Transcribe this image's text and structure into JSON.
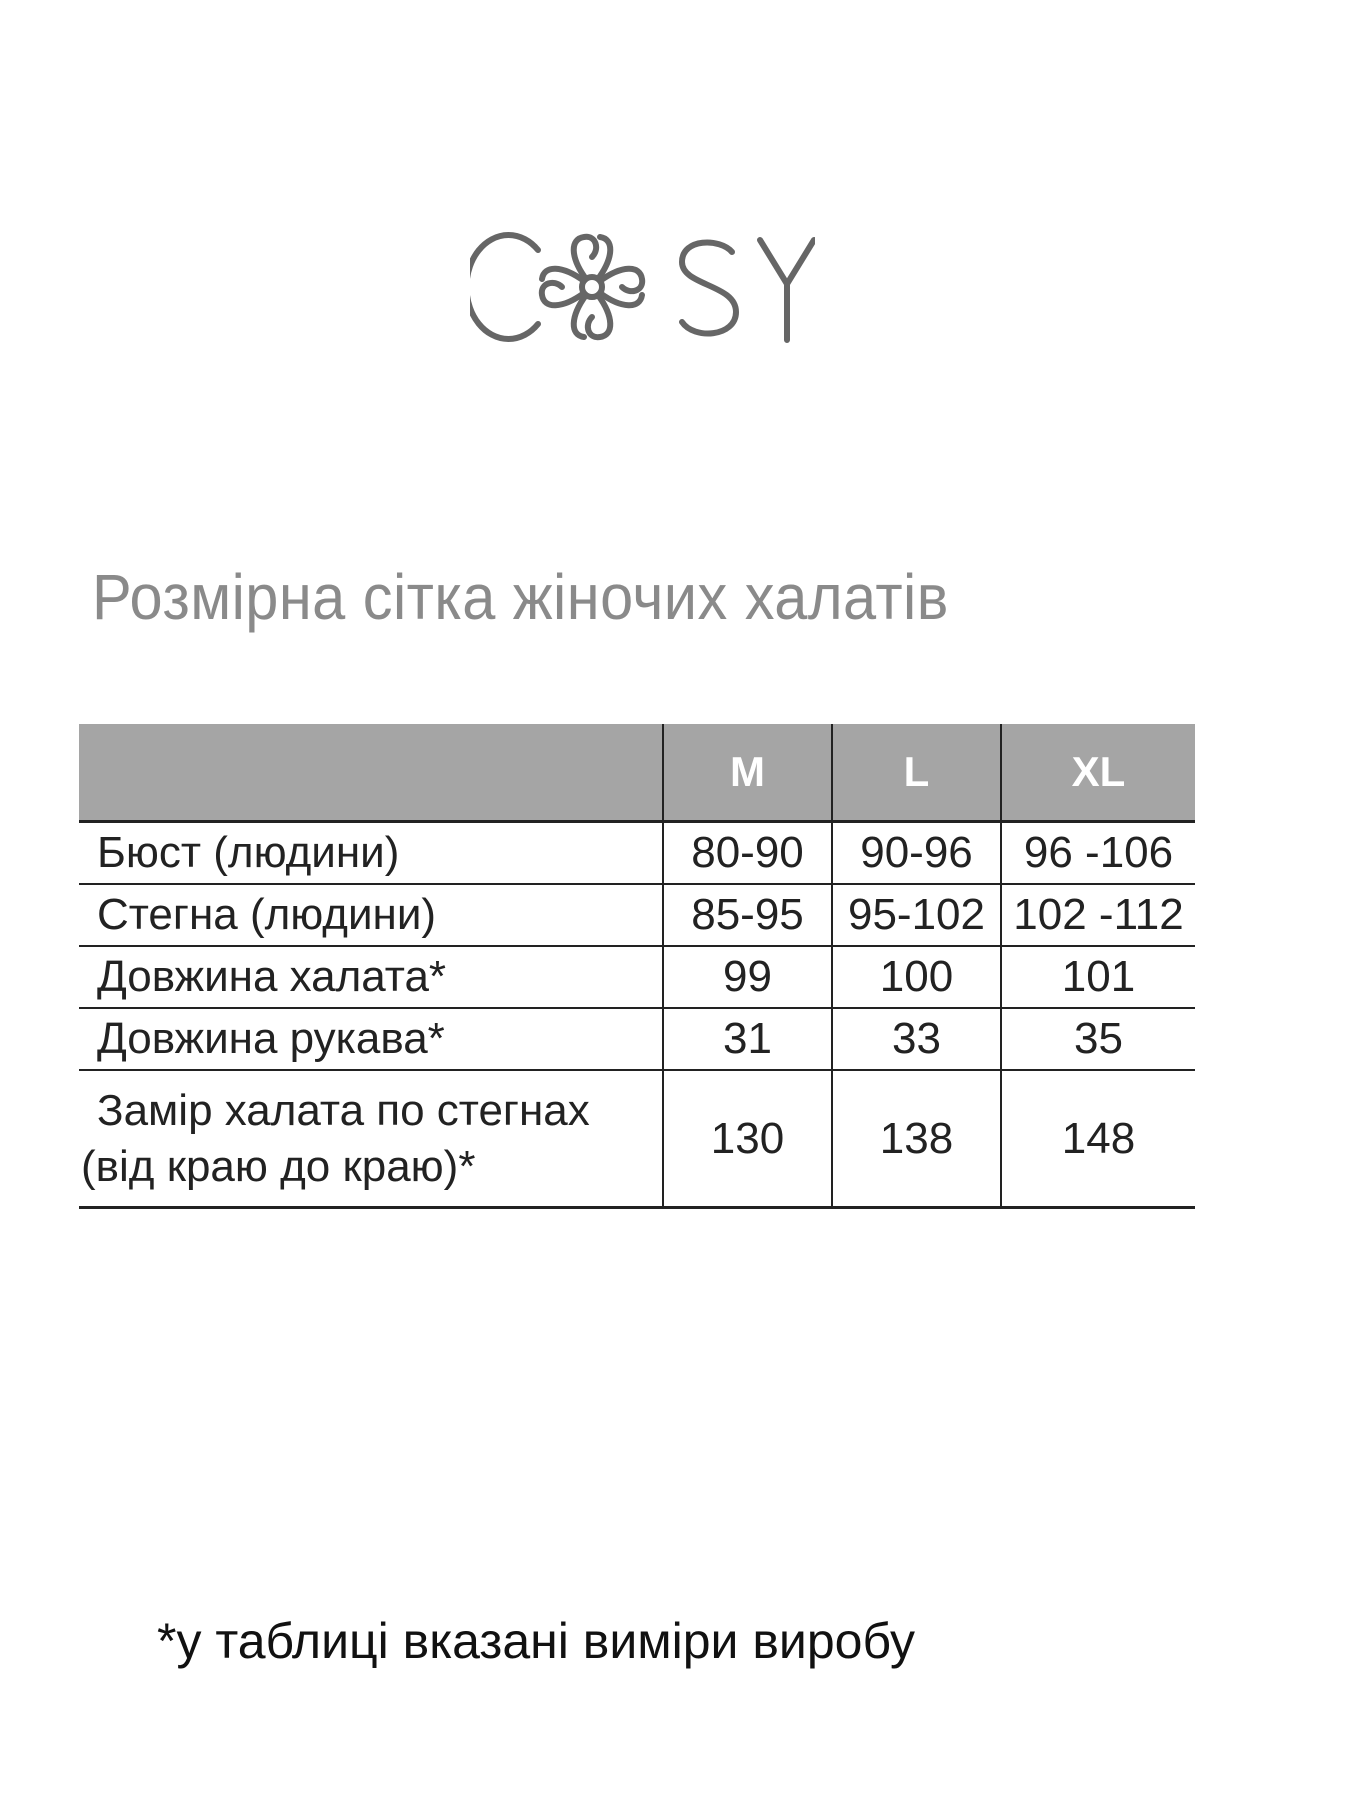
{
  "logo": {
    "text": "COSY",
    "color": "#666666",
    "icon": "flower-knot-icon"
  },
  "title": "Розмірна сітка жіночих халатів",
  "table": {
    "header_color": "#a5a5a5",
    "columns": [
      "",
      "M",
      "L",
      "XL"
    ],
    "rows": [
      {
        "label": "Бюст (людини)",
        "values": [
          "80-90",
          "90-96",
          "96 -106"
        ]
      },
      {
        "label": "Стегна (людини)",
        "values": [
          "85-95",
          "95-102",
          "102 -112"
        ]
      },
      {
        "label": "Довжина халата*",
        "values": [
          "99",
          "100",
          "101"
        ]
      },
      {
        "label": "Довжина рукава*",
        "values": [
          "31",
          "33",
          "35"
        ]
      },
      {
        "label_line1": "Замір халата по стегнах",
        "label_line2": "(від краю до краю)*",
        "values": [
          "130",
          "138",
          "148"
        ]
      }
    ]
  },
  "footnote": "*у таблиці вказані виміри виробу"
}
